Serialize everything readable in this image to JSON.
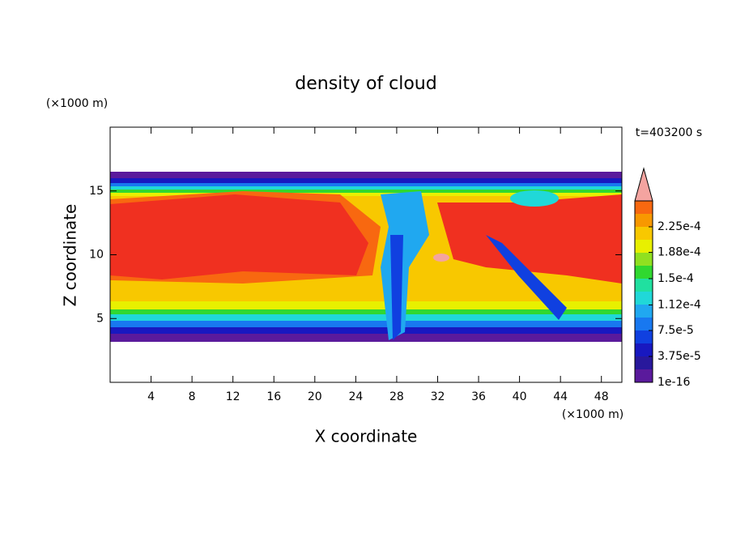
{
  "chart_data": {
    "type": "contour",
    "title": "density of cloud",
    "time_label": "t=403200 s",
    "x_label": "X coordinate",
    "x_unit": "(×1000 m)",
    "y_label": "Z coordinate",
    "y_unit": "(×1000 m)",
    "xlim": [
      0,
      50
    ],
    "xticks": [
      4,
      8,
      12,
      16,
      20,
      24,
      28,
      32,
      36,
      40,
      44,
      48
    ],
    "ylim": [
      0,
      20
    ],
    "yticks": [
      5,
      10,
      15
    ],
    "colorbar": {
      "clim": [
        1e-16,
        0.0002625
      ],
      "colors": [
        "#5a1a9c",
        "#28189c",
        "#1818c0",
        "#1040e0",
        "#1878f0",
        "#20a8f0",
        "#20d8d8",
        "#20e0a0",
        "#30d830",
        "#90e020",
        "#e8f000",
        "#f8c800",
        "#f89800",
        "#f86810"
      ],
      "extend_color": "#f4a4a0",
      "ticks": [
        {
          "value": 1e-16,
          "label": "1e-16"
        },
        {
          "value": 3.75e-05,
          "label": "3.75e-5"
        },
        {
          "value": 7.5e-05,
          "label": "7.5e-5"
        },
        {
          "value": 0.000112,
          "label": "1.12e-4"
        },
        {
          "value": 0.00015,
          "label": "1.5e-4"
        },
        {
          "value": 0.000188,
          "label": "1.88e-4"
        },
        {
          "value": 0.000225,
          "label": "2.25e-4"
        }
      ]
    }
  }
}
